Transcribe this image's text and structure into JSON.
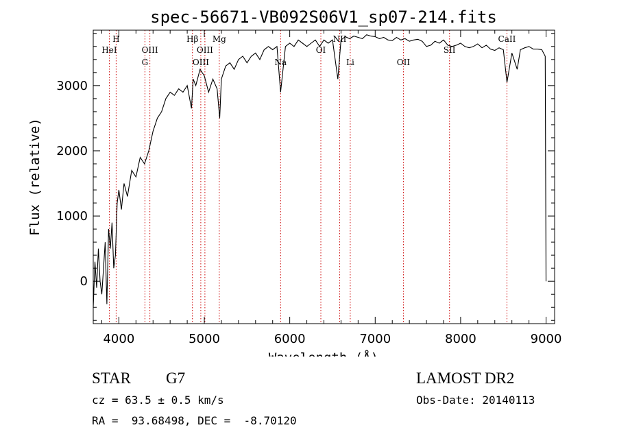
{
  "chart_data": {
    "type": "line",
    "title": "spec-56671-VB092S06V1_sp07-214.fits",
    "xlabel": "Wavelength (Å)",
    "ylabel": "Flux (relative)",
    "xlim": [
      3700,
      9100
    ],
    "ylim": [
      -650,
      3850
    ],
    "xticks": [
      4000,
      5000,
      6000,
      7000,
      8000,
      9000
    ],
    "yticks": [
      0,
      1000,
      2000,
      3000
    ],
    "grid": false,
    "line_color": "#000000",
    "marker_color": "#cc0000",
    "series": [
      {
        "x": [
          3700,
          3720,
          3740,
          3760,
          3780,
          3800,
          3820,
          3840,
          3860,
          3880,
          3900,
          3920,
          3940,
          3960,
          3980,
          4000,
          4030,
          4060,
          4100,
          4150,
          4200,
          4250,
          4300,
          4350,
          4400,
          4450,
          4500,
          4550,
          4600,
          4650,
          4700,
          4750,
          4800,
          4850,
          4870,
          4900,
          4950,
          5000,
          5050,
          5100,
          5150,
          5180,
          5200,
          5250,
          5300,
          5350,
          5400,
          5450,
          5500,
          5550,
          5600,
          5650,
          5700,
          5750,
          5800,
          5850,
          5893,
          5950,
          6000,
          6050,
          6100,
          6150,
          6200,
          6250,
          6300,
          6350,
          6400,
          6450,
          6500,
          6563,
          6600,
          6650,
          6700,
          6750,
          6800,
          6850,
          6900,
          6950,
          7000,
          7050,
          7100,
          7150,
          7200,
          7250,
          7300,
          7350,
          7400,
          7450,
          7500,
          7550,
          7600,
          7650,
          7700,
          7750,
          7800,
          7850,
          7900,
          7950,
          8000,
          8050,
          8100,
          8150,
          8200,
          8250,
          8300,
          8350,
          8400,
          8450,
          8500,
          8542,
          8600,
          8662,
          8700,
          8750,
          8800,
          8850,
          8900,
          8950,
          8990,
          9000
        ],
        "y": [
          -400,
          300,
          -100,
          500,
          0,
          -200,
          200,
          600,
          -350,
          800,
          500,
          900,
          200,
          400,
          1200,
          1400,
          1100,
          1500,
          1300,
          1700,
          1600,
          1900,
          1800,
          2000,
          2300,
          2500,
          2600,
          2800,
          2900,
          2850,
          2950,
          2900,
          3000,
          2650,
          3100,
          3000,
          3250,
          3150,
          2900,
          3100,
          2950,
          2500,
          3100,
          3300,
          3350,
          3250,
          3400,
          3450,
          3350,
          3450,
          3500,
          3400,
          3550,
          3600,
          3550,
          3600,
          2900,
          3600,
          3650,
          3600,
          3700,
          3650,
          3600,
          3650,
          3700,
          3600,
          3700,
          3650,
          3700,
          3100,
          3700,
          3750,
          3720,
          3760,
          3740,
          3720,
          3780,
          3760,
          3750,
          3720,
          3740,
          3700,
          3690,
          3740,
          3700,
          3720,
          3680,
          3700,
          3710,
          3680,
          3600,
          3620,
          3680,
          3650,
          3700,
          3620,
          3600,
          3620,
          3650,
          3600,
          3580,
          3600,
          3640,
          3580,
          3620,
          3560,
          3540,
          3580,
          3550,
          3050,
          3500,
          3250,
          3550,
          3580,
          3600,
          3560,
          3560,
          3550,
          3450,
          0
        ]
      }
    ],
    "line_markers": [
      {
        "name": "HeI",
        "x": 3888,
        "tier": 2
      },
      {
        "name": "H",
        "x": 3968,
        "tier": 1
      },
      {
        "name": "G",
        "x": 4305,
        "tier": 3
      },
      {
        "name": "OIII",
        "x": 4363,
        "tier": 2
      },
      {
        "name": "Hβ",
        "x": 4861,
        "tier": 1
      },
      {
        "name": "OIII",
        "x": 4959,
        "tier": 3
      },
      {
        "name": "OIII",
        "x": 5007,
        "tier": 2
      },
      {
        "name": "Mg",
        "x": 5175,
        "tier": 1
      },
      {
        "name": "Na",
        "x": 5893,
        "tier": 3
      },
      {
        "name": "OI",
        "x": 6364,
        "tier": 2
      },
      {
        "name": "NII",
        "x": 6584,
        "tier": 1
      },
      {
        "name": "Li",
        "x": 6708,
        "tier": 3
      },
      {
        "name": "OII",
        "x": 7330,
        "tier": 3
      },
      {
        "name": "SII",
        "x": 7870,
        "tier": 2
      },
      {
        "name": "CaII",
        "x": 8542,
        "tier": 1
      }
    ]
  },
  "info": {
    "object_class": "STAR",
    "subclass": "G7",
    "survey": "LAMOST DR2",
    "cz": "cz = 63.5 ± 0.5 km/s",
    "obs_date": "Obs-Date: 20140113",
    "coords": "RA =  93.68498, DEC =  -8.70120"
  }
}
